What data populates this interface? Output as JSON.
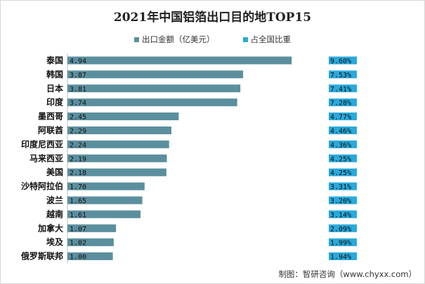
{
  "title": "2021年中国铝箔出口目的地TOP15",
  "source": "制图：智研咨询（www.chyxx.com）",
  "colors": {
    "bar": "#5b8f9e",
    "pct_box": "#29a9dc"
  },
  "chart_data": {
    "type": "bar",
    "orientation": "horizontal",
    "title": "2021年中国铝箔出口目的地TOP15",
    "xlabel": "",
    "ylabel": "",
    "categories": [
      "泰国",
      "韩国",
      "日本",
      "印度",
      "墨西哥",
      "阿联酋",
      "印度尼西亚",
      "马来西亚",
      "美国",
      "沙特阿拉伯",
      "波兰",
      "越南",
      "加拿大",
      "埃及",
      "俄罗斯联邦"
    ],
    "series": [
      {
        "name": "出口金额（亿美元）",
        "values": [
          4.94,
          3.87,
          3.81,
          3.74,
          2.45,
          2.29,
          2.24,
          2.19,
          2.18,
          1.7,
          1.65,
          1.61,
          1.07,
          1.02,
          1.0
        ]
      },
      {
        "name": "占全国比重",
        "values": [
          "9.60%",
          "7.53%",
          "7.41%",
          "7.28%",
          "4.77%",
          "4.46%",
          "4.36%",
          "4.25%",
          "4.25%",
          "3.31%",
          "3.20%",
          "3.14%",
          "2.09%",
          "1.99%",
          "1.94%"
        ]
      }
    ],
    "xlim": [
      0,
      6.5
    ],
    "grid": false,
    "legend_position": "top"
  }
}
